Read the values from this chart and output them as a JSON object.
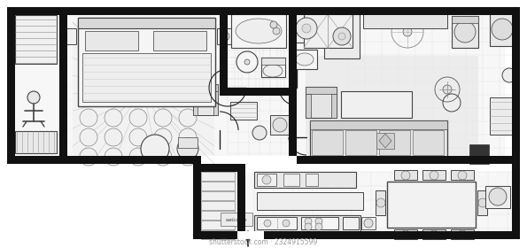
{
  "bg_color": "#ffffff",
  "wall_color": "#111111",
  "watermark": "shutterstock.com · 2324915599",
  "welcome_text": "welcome"
}
